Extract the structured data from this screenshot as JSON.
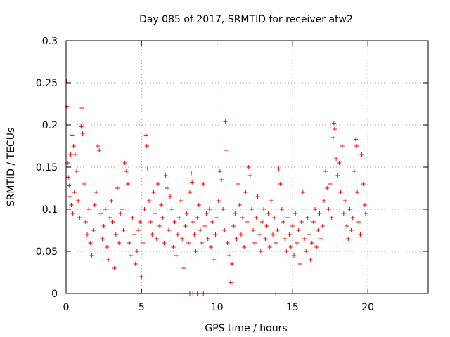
{
  "chart_data": {
    "type": "scatter",
    "title": "Day 085 of 2017, SRMTID for receiver atw2",
    "xlabel": "GPS time / hours",
    "ylabel": "SRMTID / TECUs",
    "xlim": [
      0,
      24
    ],
    "ylim": [
      0,
      0.3
    ],
    "grid": true,
    "marker": "+",
    "color": "#ff0000",
    "x_ticks": [
      0,
      5,
      10,
      15,
      20
    ],
    "x_tick_labels": [
      "0",
      "5",
      "10",
      "15",
      "20"
    ],
    "y_ticks": [
      0,
      0.05,
      0.1,
      0.15,
      0.2,
      0.25,
      0.3
    ],
    "y_tick_labels": [
      "0",
      "0.05",
      "0.1",
      "0.15",
      "0.2",
      "0.25",
      "0.3"
    ],
    "series": [
      {
        "name": "SRMTID",
        "points": [
          [
            0.05,
            0.252
          ],
          [
            0.05,
            0.222
          ],
          [
            0.1,
            0.155
          ],
          [
            0.15,
            0.138
          ],
          [
            0.2,
            0.128
          ],
          [
            0.25,
            0.115
          ],
          [
            0.3,
            0.165
          ],
          [
            0.35,
            0.105
          ],
          [
            0.4,
            0.188
          ],
          [
            0.45,
            0.095
          ],
          [
            0.5,
            0.175
          ],
          [
            0.55,
            0.12
          ],
          [
            0.6,
            0.165
          ],
          [
            0.7,
            0.145
          ],
          [
            0.8,
            0.11
          ],
          [
            0.9,
            0.09
          ],
          [
            1.0,
            0.198
          ],
          [
            1.05,
            0.22
          ],
          [
            1.1,
            0.19
          ],
          [
            1.2,
            0.13
          ],
          [
            1.3,
            0.085
          ],
          [
            1.4,
            0.07
          ],
          [
            1.5,
            0.1
          ],
          [
            1.6,
            0.06
          ],
          [
            1.7,
            0.045
          ],
          [
            1.8,
            0.075
          ],
          [
            1.9,
            0.105
          ],
          [
            2.0,
            0.12
          ],
          [
            2.1,
            0.175
          ],
          [
            2.2,
            0.17
          ],
          [
            2.3,
            0.095
          ],
          [
            2.4,
            0.065
          ],
          [
            2.5,
            0.08
          ],
          [
            2.6,
            0.1
          ],
          [
            2.7,
            0.055
          ],
          [
            2.8,
            0.04
          ],
          [
            2.9,
            0.09
          ],
          [
            3.0,
            0.11
          ],
          [
            3.1,
            0.085
          ],
          [
            3.2,
            0.03
          ],
          [
            3.3,
            0.07
          ],
          [
            3.4,
            0.125
          ],
          [
            3.5,
            0.06
          ],
          [
            3.6,
            0.095
          ],
          [
            3.7,
            0.1
          ],
          [
            3.8,
            0.075
          ],
          [
            3.9,
            0.155
          ],
          [
            4.0,
            0.145
          ],
          [
            4.1,
            0.13
          ],
          [
            4.2,
            0.06
          ],
          [
            4.3,
            0.045
          ],
          [
            4.4,
            0.09
          ],
          [
            4.5,
            0.07
          ],
          [
            4.6,
            0.035
          ],
          [
            4.7,
            0.05
          ],
          [
            4.8,
            0.075
          ],
          [
            4.9,
            0.085
          ],
          [
            5.0,
            0.02
          ],
          [
            5.1,
            0.06
          ],
          [
            5.2,
            0.1
          ],
          [
            5.3,
            0.188
          ],
          [
            5.35,
            0.175
          ],
          [
            5.4,
            0.148
          ],
          [
            5.5,
            0.11
          ],
          [
            5.6,
            0.085
          ],
          [
            5.7,
            0.07
          ],
          [
            5.8,
            0.12
          ],
          [
            5.9,
            0.095
          ],
          [
            6.0,
            0.065
          ],
          [
            6.1,
            0.13
          ],
          [
            6.2,
            0.08
          ],
          [
            6.3,
            0.105
          ],
          [
            6.4,
            0.09
          ],
          [
            6.5,
            0.06
          ],
          [
            6.6,
            0.14
          ],
          [
            6.7,
            0.125
          ],
          [
            6.8,
            0.075
          ],
          [
            6.9,
            0.115
          ],
          [
            7.0,
            0.1
          ],
          [
            7.1,
            0.055
          ],
          [
            7.2,
            0.085
          ],
          [
            7.3,
            0.045
          ],
          [
            7.4,
            0.07
          ],
          [
            7.5,
            0.09
          ],
          [
            7.6,
            0.11
          ],
          [
            7.7,
            0.065
          ],
          [
            7.8,
            0.03
          ],
          [
            7.9,
            0.08
          ],
          [
            8.0,
            0.095
          ],
          [
            8.1,
            0.06
          ],
          [
            8.2,
            0.12
          ],
          [
            8.3,
            0.143
          ],
          [
            8.35,
            0.132
          ],
          [
            8.4,
            0.085
          ],
          [
            8.5,
            0.07
          ],
          [
            8.6,
            0.05
          ],
          [
            8.7,
            0.09
          ],
          [
            8.8,
            0.105
          ],
          [
            8.9,
            0.075
          ],
          [
            9.0,
            0.06
          ],
          [
            9.1,
            0.13
          ],
          [
            9.2,
            0.08
          ],
          [
            9.3,
            0.095
          ],
          [
            9.4,
            0.065
          ],
          [
            9.5,
            0.1
          ],
          [
            9.6,
            0.055
          ],
          [
            9.7,
            0.085
          ],
          [
            9.8,
            0.04
          ],
          [
            9.9,
            0.07
          ],
          [
            10.0,
            0.09
          ],
          [
            10.1,
            0.11
          ],
          [
            10.2,
            0.145
          ],
          [
            10.3,
            0.135
          ],
          [
            10.4,
            0.1
          ],
          [
            10.5,
            0.075
          ],
          [
            10.55,
            0.204
          ],
          [
            10.6,
            0.17
          ],
          [
            10.7,
            0.06
          ],
          [
            10.8,
            0.045
          ],
          [
            10.9,
            0.013
          ],
          [
            11.0,
            0.035
          ],
          [
            11.1,
            0.08
          ],
          [
            11.2,
            0.095
          ],
          [
            11.3,
            0.065
          ],
          [
            11.4,
            0.13
          ],
          [
            11.5,
            0.105
          ],
          [
            11.6,
            0.07
          ],
          [
            11.7,
            0.09
          ],
          [
            11.8,
            0.055
          ],
          [
            11.9,
            0.12
          ],
          [
            12.0,
            0.085
          ],
          [
            12.1,
            0.15
          ],
          [
            12.2,
            0.14
          ],
          [
            12.3,
            0.1
          ],
          [
            12.4,
            0.075
          ],
          [
            12.5,
            0.06
          ],
          [
            12.6,
            0.09
          ],
          [
            12.7,
            0.115
          ],
          [
            12.8,
            0.07
          ],
          [
            12.9,
            0.05
          ],
          [
            13.0,
            0.085
          ],
          [
            13.1,
            0.1
          ],
          [
            13.2,
            0.065
          ],
          [
            13.3,
            0.08
          ],
          [
            13.4,
            0.095
          ],
          [
            13.5,
            0.055
          ],
          [
            13.6,
            0.11
          ],
          [
            13.7,
            0.07
          ],
          [
            13.8,
            0.09
          ],
          [
            13.9,
            0.06
          ],
          [
            14.0,
            0.075
          ],
          [
            14.1,
            0.148
          ],
          [
            14.2,
            0.13
          ],
          [
            14.3,
            0.1
          ],
          [
            14.4,
            0.085
          ],
          [
            14.5,
            0.065
          ],
          [
            14.6,
            0.05
          ],
          [
            14.7,
            0.09
          ],
          [
            14.8,
            0.07
          ],
          [
            14.9,
            0.055
          ],
          [
            15.0,
            0.08
          ],
          [
            15.1,
            0.045
          ],
          [
            15.2,
            0.095
          ],
          [
            15.3,
            0.06
          ],
          [
            15.4,
            0.075
          ],
          [
            15.5,
            0.035
          ],
          [
            15.6,
            0.085
          ],
          [
            15.7,
            0.12
          ],
          [
            15.8,
            0.065
          ],
          [
            15.9,
            0.05
          ],
          [
            16.0,
            0.09
          ],
          [
            16.1,
            0.07
          ],
          [
            16.2,
            0.04
          ],
          [
            16.3,
            0.06
          ],
          [
            16.4,
            0.085
          ],
          [
            16.5,
            0.1
          ],
          [
            16.6,
            0.055
          ],
          [
            16.7,
            0.075
          ],
          [
            16.8,
            0.095
          ],
          [
            16.9,
            0.065
          ],
          [
            17.0,
            0.08
          ],
          [
            17.1,
            0.11
          ],
          [
            17.2,
            0.145
          ],
          [
            17.3,
            0.125
          ],
          [
            17.4,
            0.1
          ],
          [
            17.5,
            0.13
          ],
          [
            17.6,
            0.09
          ],
          [
            17.7,
            0.185
          ],
          [
            17.75,
            0.202
          ],
          [
            17.8,
            0.195
          ],
          [
            17.9,
            0.16
          ],
          [
            18.0,
            0.14
          ],
          [
            18.1,
            0.155
          ],
          [
            18.2,
            0.12
          ],
          [
            18.3,
            0.175
          ],
          [
            18.4,
            0.095
          ],
          [
            18.5,
            0.11
          ],
          [
            18.6,
            0.08
          ],
          [
            18.7,
            0.065
          ],
          [
            18.8,
            0.1
          ],
          [
            18.9,
            0.075
          ],
          [
            19.0,
            0.09
          ],
          [
            19.1,
            0.145
          ],
          [
            19.2,
            0.183
          ],
          [
            19.25,
            0.175
          ],
          [
            19.3,
            0.12
          ],
          [
            19.4,
            0.085
          ],
          [
            19.5,
            0.07
          ],
          [
            19.6,
            0.165
          ],
          [
            19.7,
            0.13
          ],
          [
            19.8,
            0.105
          ],
          [
            19.85,
            0.095
          ],
          [
            8.2,
            0.0
          ],
          [
            8.4,
            0.0
          ],
          [
            8.7,
            0.0
          ],
          [
            9.1,
            0.0
          ],
          [
            13.9,
            0.0
          ]
        ]
      }
    ]
  }
}
